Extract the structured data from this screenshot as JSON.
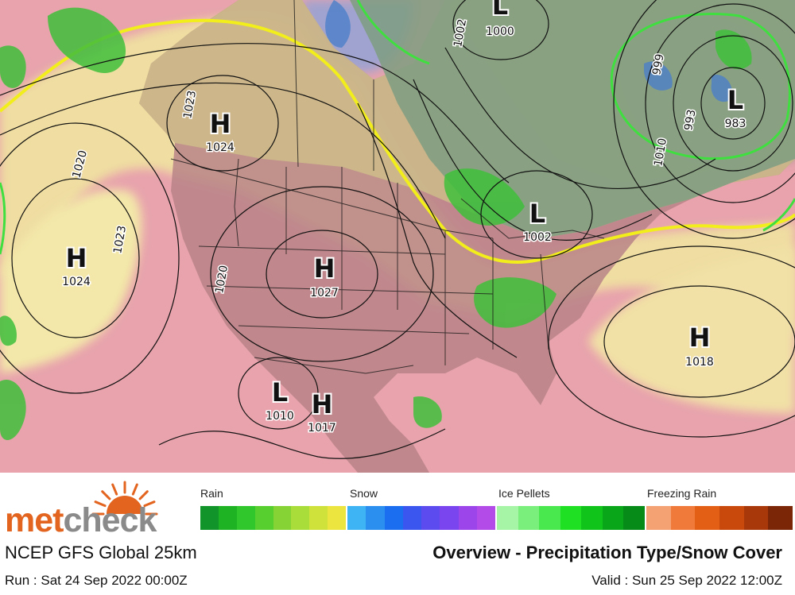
{
  "map": {
    "pressure_centers": [
      {
        "type": "H",
        "value": "1024",
        "region": "northeast-pacific"
      },
      {
        "type": "H",
        "value": "1024",
        "region": "british-columbia"
      },
      {
        "type": "H",
        "value": "1027",
        "region": "central-rockies"
      },
      {
        "type": "L",
        "value": "1000",
        "region": "hudson-bay"
      },
      {
        "type": "L",
        "value": "983",
        "region": "labrador"
      },
      {
        "type": "L",
        "value": "1002",
        "region": "great-lakes"
      },
      {
        "type": "H",
        "value": "1018",
        "region": "western-atlantic"
      },
      {
        "type": "L",
        "value": "1010",
        "region": "baja-california"
      },
      {
        "type": "H",
        "value": "1017",
        "region": "northern-mexico"
      }
    ],
    "isobar_labels": [
      "1020",
      "1023",
      "1023",
      "1020",
      "999",
      "993",
      "1002",
      "1010"
    ],
    "colors": {
      "ocean": "#e8a3ac",
      "land_warm": "#b98487",
      "snow_line": "#f2ee1c",
      "rain_green": "#3fbf3b",
      "canada_green": "#7e9d80",
      "polar_blue": "#8fa3d8",
      "pale_yellow": "#f0e4a0",
      "isobar": "#111111",
      "boundary": "#1a1a1a"
    }
  },
  "legend": {
    "categories": [
      {
        "label": "Rain",
        "colors": [
          "#11952a",
          "#1db322",
          "#2fc72c",
          "#57cf2f",
          "#86d335",
          "#a8dd3a",
          "#cfe23c",
          "#ece43f"
        ]
      },
      {
        "label": "Snow",
        "colors": [
          "#3fb4f4",
          "#2b8ff0",
          "#1c6ef0",
          "#3b55ef",
          "#5c4bee",
          "#7a45ee",
          "#9b45ea",
          "#b24be8"
        ]
      },
      {
        "label": "Ice Pellets",
        "colors": [
          "#a6f5a6",
          "#7bef7c",
          "#49e84e",
          "#1fe022",
          "#10c41a",
          "#0aa61a",
          "#078b18"
        ]
      },
      {
        "label": "Freezing Rain",
        "colors": [
          "#f4a174",
          "#ef7a3a",
          "#e25f15",
          "#c9480c",
          "#a8370a",
          "#7c2608"
        ]
      }
    ]
  },
  "branding": {
    "logo_met": "met",
    "logo_check": "check",
    "logo_color": "#e2641f"
  },
  "header": {
    "model": "NCEP GFS Global 25km",
    "product": "Overview - Precipitation Type/Snow Cover"
  },
  "times": {
    "run": "Run : Sat 24 Sep 2022 00:00Z",
    "valid": "Valid : Sun 25 Sep 2022 12:00Z"
  }
}
